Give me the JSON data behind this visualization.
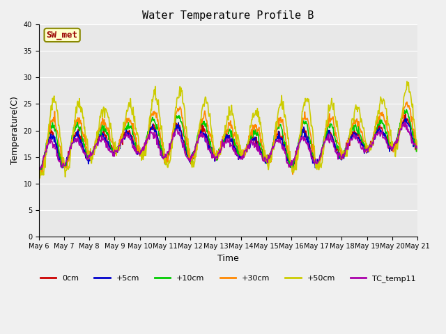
{
  "title": "Water Temperature Profile B",
  "xlabel": "Time",
  "ylabel": "Temperature(C)",
  "annotation": "SW_met",
  "ylim": [
    0,
    40
  ],
  "yticks": [
    0,
    5,
    10,
    15,
    20,
    25,
    30,
    35,
    40
  ],
  "series_labels": [
    "0cm",
    "+5cm",
    "+10cm",
    "+30cm",
    "+50cm",
    "TC_temp11"
  ],
  "series_colors": [
    "#cc0000",
    "#0000cc",
    "#00cc00",
    "#ff8800",
    "#cccc00",
    "#aa00aa"
  ],
  "bg_color": "#e8e8e8",
  "grid_color": "#ffffff",
  "n_days": 15,
  "xtick_labels": [
    "May 6",
    "May 7",
    "May 8",
    "May 9",
    "May 10",
    "May 11",
    "May 12",
    "May 13",
    "May 14",
    "May 15",
    "May 16",
    "May 17",
    "May 18",
    "May 19",
    "May 20",
    "May 21"
  ]
}
